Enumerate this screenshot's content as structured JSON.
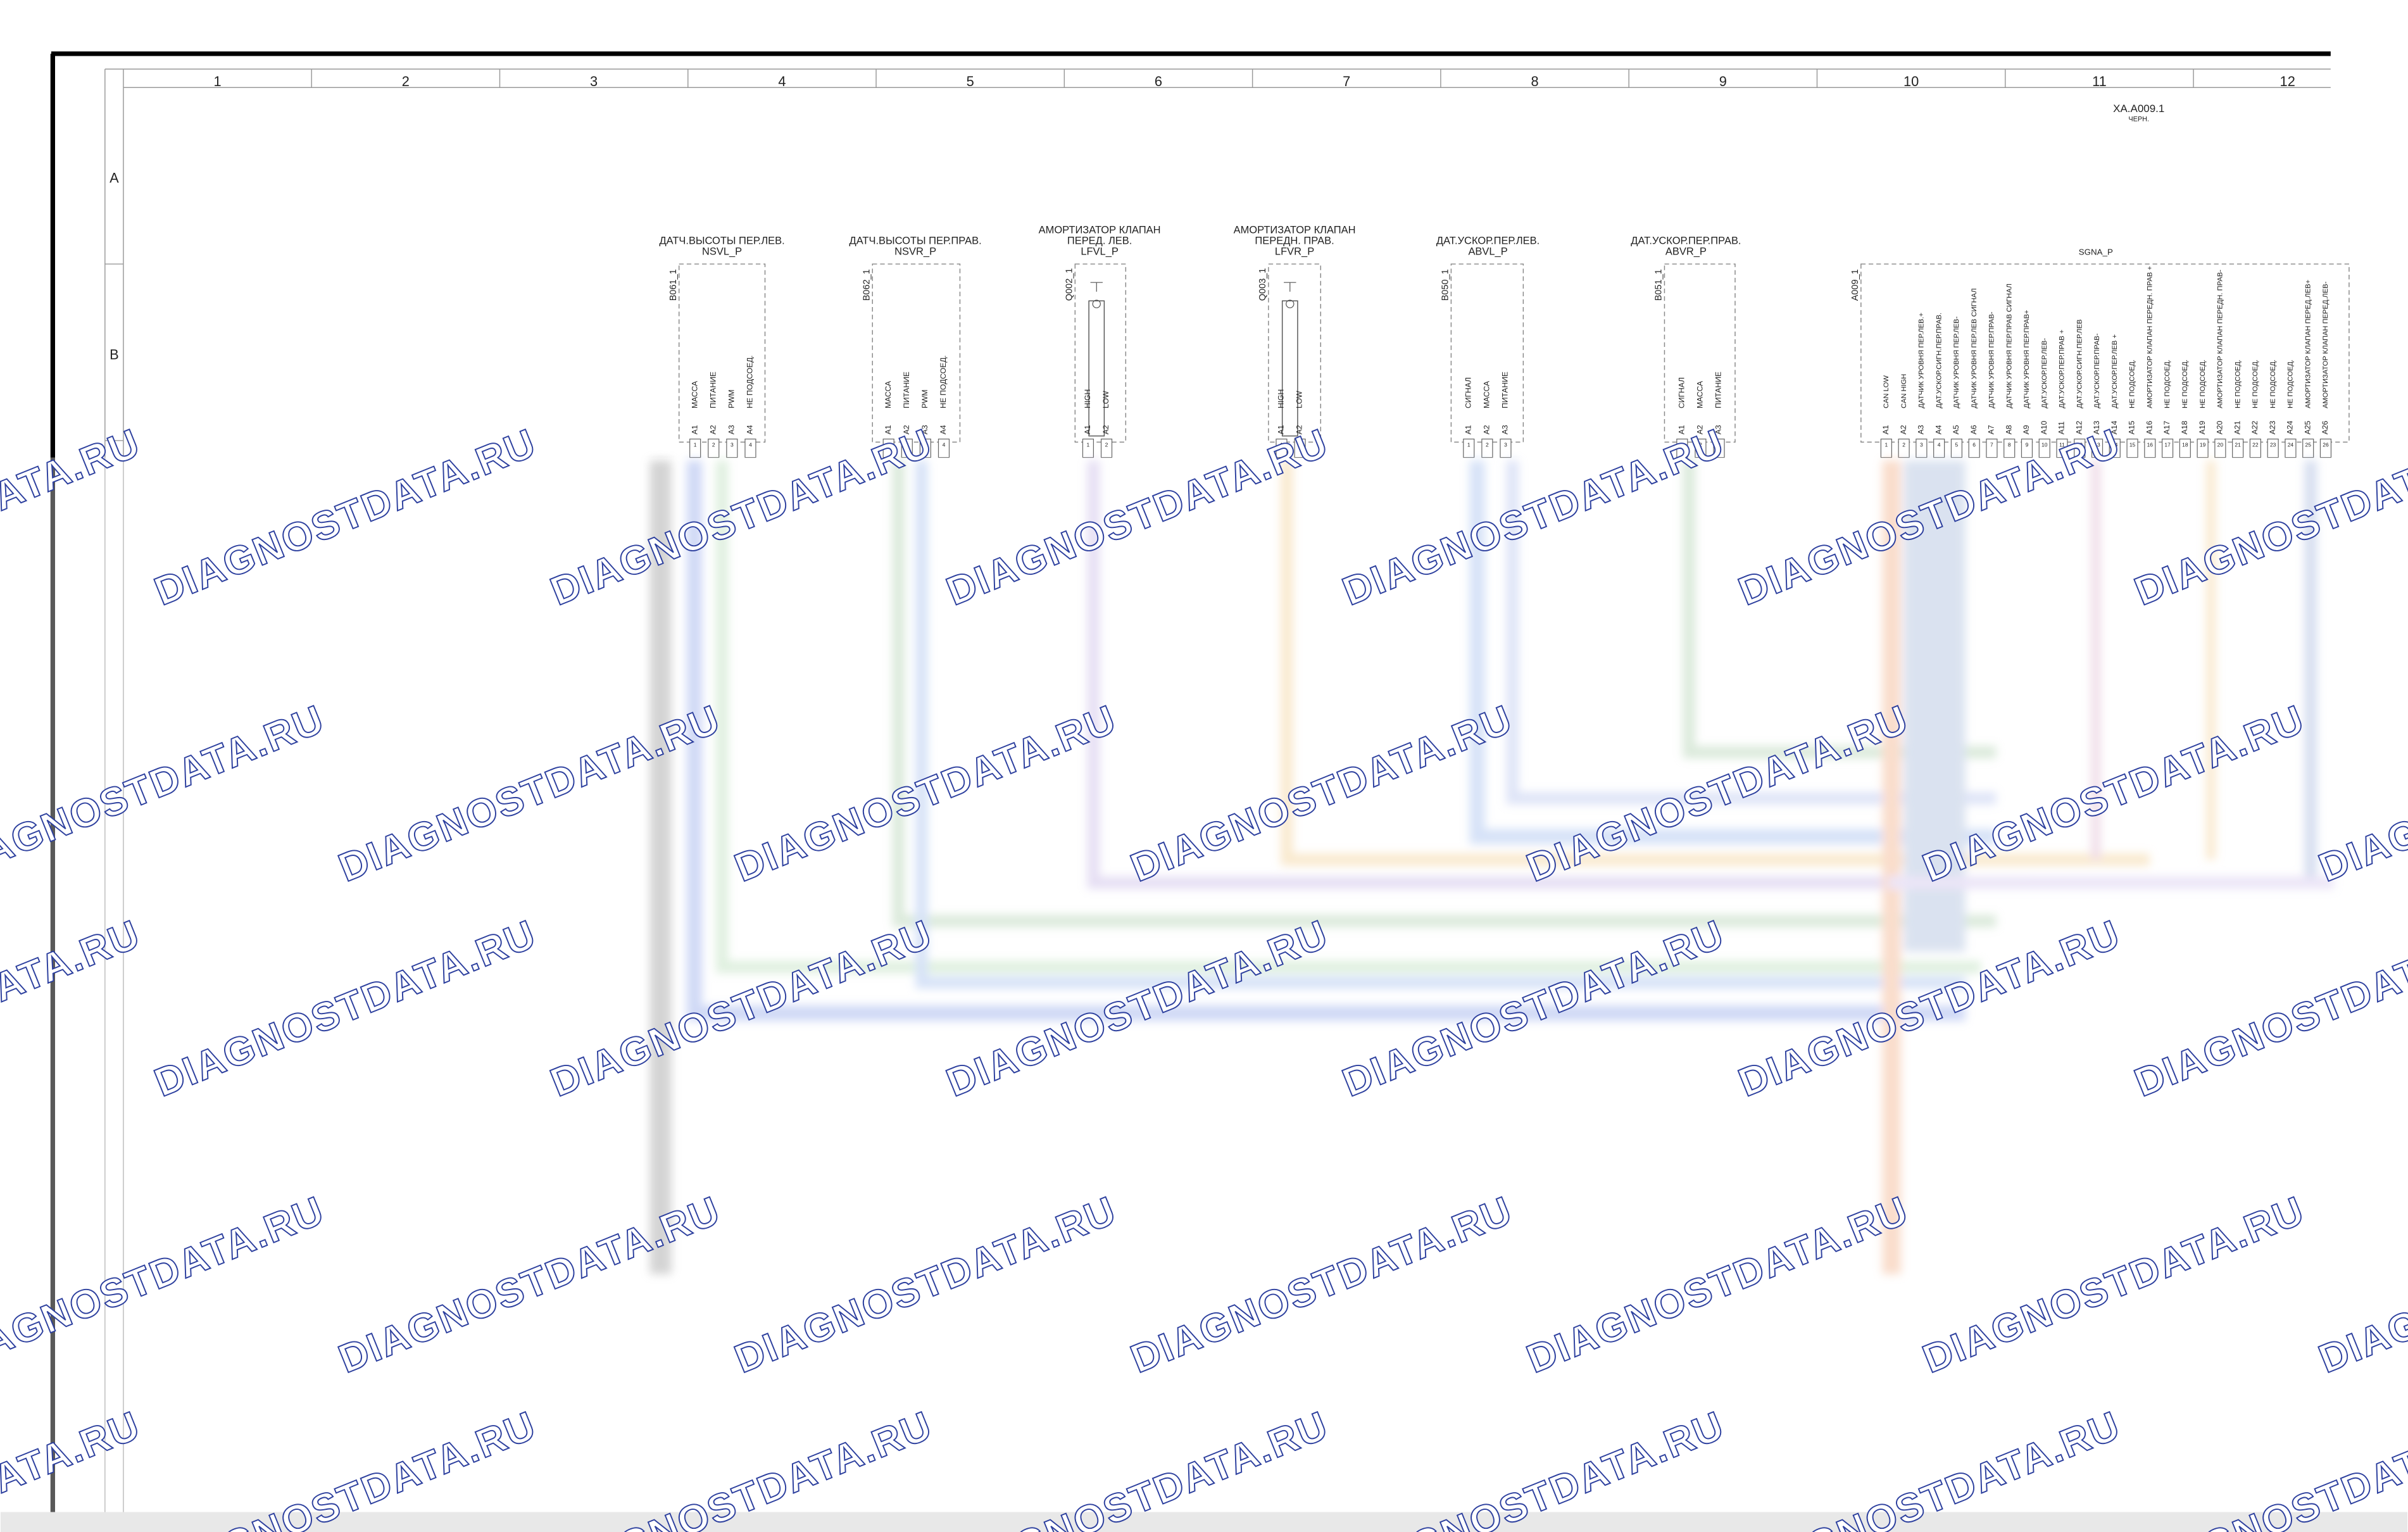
{
  "header": {
    "connector": "XA.A009.1",
    "color": "ЧЕРН."
  },
  "grid": {
    "columns": [
      "1",
      "2",
      "3",
      "4",
      "5",
      "6",
      "7",
      "8",
      "9",
      "10",
      "11",
      "12"
    ],
    "rows": [
      "A",
      "B"
    ]
  },
  "components": [
    {
      "title": [
        "ДАТЧ.ВЫСОТЫ ПЕР.ЛЕВ.",
        "NSVL_P"
      ],
      "ref": "B061_1",
      "pins": [
        {
          "id": "A1",
          "number": "1",
          "label": "МАССА"
        },
        {
          "id": "A2",
          "number": "2",
          "label": "ПИТАНИЕ"
        },
        {
          "id": "A3",
          "number": "3",
          "label": "PWM"
        },
        {
          "id": "A4",
          "number": "4",
          "label": "НЕ ПОДСОЕД."
        }
      ]
    },
    {
      "title": [
        "ДАТЧ.ВЫСОТЫ ПЕР.ПРАВ.",
        "NSVR_P"
      ],
      "ref": "B062_1",
      "pins": [
        {
          "id": "A1",
          "number": "1",
          "label": "МАССА"
        },
        {
          "id": "A2",
          "number": "2",
          "label": "ПИТАНИЕ"
        },
        {
          "id": "A3",
          "number": "3",
          "label": "PWM"
        },
        {
          "id": "A4",
          "number": "4",
          "label": "НЕ ПОДСОЕД."
        }
      ]
    },
    {
      "title": [
        "АМОРТИЗАТОР КЛАПАН",
        "ПЕРЕД. ЛЕВ.",
        "LFVL_P"
      ],
      "ref": "Q002_1",
      "pins": [
        {
          "id": "A1",
          "number": "1",
          "label": "HIGH"
        },
        {
          "id": "A2",
          "number": "2",
          "label": "LOW"
        }
      ]
    },
    {
      "title": [
        "АМОРТИЗАТОР КЛАПАН",
        "ПЕРЕДН. ПРАВ.",
        "LFVR_P"
      ],
      "ref": "Q003_1",
      "pins": [
        {
          "id": "A1",
          "number": "1",
          "label": "HIGH"
        },
        {
          "id": "A2",
          "number": "2",
          "label": "LOW"
        }
      ]
    },
    {
      "title": [
        "ДАТ.УСКОР.ПЕР.ЛЕВ.",
        "ABVL_P"
      ],
      "ref": "B050_1",
      "pins": [
        {
          "id": "A1",
          "number": "1",
          "label": "СИГНАЛ"
        },
        {
          "id": "A2",
          "number": "2",
          "label": "МАССА"
        },
        {
          "id": "A3",
          "number": "3",
          "label": "ПИТАНИЕ"
        }
      ]
    },
    {
      "title": [
        "ДАТ.УСКОР.ПЕР.ПРАВ.",
        "ABVR_P"
      ],
      "ref": "B051_1",
      "pins": [
        {
          "id": "A1",
          "number": "1",
          "label": "СИГНАЛ"
        },
        {
          "id": "A2",
          "number": "2",
          "label": "МАССА"
        },
        {
          "id": "A3",
          "number": "3",
          "label": "ПИТАНИЕ"
        }
      ]
    },
    {
      "title": [
        "SGNA_P"
      ],
      "ref": "A009_1",
      "pins": [
        {
          "id": "A1",
          "number": "1",
          "label": "CAN LOW"
        },
        {
          "id": "A2",
          "number": "2",
          "label": "CAN HIGH"
        },
        {
          "id": "A3",
          "number": "3",
          "label": "ДАТЧИК УРОВНЯ ПЕР.ЛЕВ.+"
        },
        {
          "id": "A4",
          "number": "4",
          "label": "ДАТ.УСКОР.СИГН.ПЕР.ПРАВ."
        },
        {
          "id": "A5",
          "number": "5",
          "label": "ДАТЧИК УРОВНЯ ПЕР.ЛЕВ-"
        },
        {
          "id": "A6",
          "number": "6",
          "label": "ДАТЧИК УРОВНЯ ПЕР.ЛЕВ СИГНАЛ"
        },
        {
          "id": "A7",
          "number": "7",
          "label": "ДАТЧИК УРОВНЯ ПЕР.ПРАВ-"
        },
        {
          "id": "A8",
          "number": "8",
          "label": "ДАТЧИК УРОВНЯ ПЕР.ПРАВ СИГНАЛ"
        },
        {
          "id": "A9",
          "number": "9",
          "label": "ДАТЧИК УРОВНЯ ПЕР.ПРАВ+"
        },
        {
          "id": "A10",
          "number": "10",
          "label": "ДАТ.УСКОР.ПЕР.ЛЕВ-"
        },
        {
          "id": "A11",
          "number": "11",
          "label": "ДАТ.УСКОР.ПЕР.ПРАВ +"
        },
        {
          "id": "A12",
          "number": "12",
          "label": "ДАТ.УСКОР.СИГН.ПЕР.ЛЕВ"
        },
        {
          "id": "A13",
          "number": "13",
          "label": "ДАТ.УСКОР.ПЕР.ПРАВ-"
        },
        {
          "id": "A14",
          "number": "14",
          "label": "ДАТ.УСКОР.ПЕР.ЛЕВ +"
        },
        {
          "id": "A15",
          "number": "15",
          "label": "НЕ ПОДСОЕД."
        },
        {
          "id": "A16",
          "number": "16",
          "label": "АМОРТИЗАТОР КЛАПАН ПЕРЕДН. ПРАВ +"
        },
        {
          "id": "A17",
          "number": "17",
          "label": "НЕ ПОДСОЕД."
        },
        {
          "id": "A18",
          "number": "18",
          "label": "НЕ ПОДСОЕД."
        },
        {
          "id": "A19",
          "number": "19",
          "label": "НЕ ПОДСОЕД."
        },
        {
          "id": "A20",
          "number": "20",
          "label": "АМОРТИЗАТОР КЛАПАН ПЕРЕДН. ПРАВ-"
        },
        {
          "id": "A21",
          "number": "21",
          "label": "НЕ ПОДСОЕД."
        },
        {
          "id": "A22",
          "number": "22",
          "label": "НЕ ПОДСОЕД."
        },
        {
          "id": "A23",
          "number": "23",
          "label": "НЕ ПОДСОЕД."
        },
        {
          "id": "A24",
          "number": "24",
          "label": "НЕ ПОДСОЕД."
        },
        {
          "id": "A25",
          "number": "25",
          "label": "АМОРТИЗАТОР КЛАПАН ПЕРЕД.ЛЕВ+"
        },
        {
          "id": "A26",
          "number": "26",
          "label": "АМОРТИЗАТОР КЛАПАН ПЕРЕД.ЛЕВ-"
        }
      ]
    }
  ],
  "watermark": "DIAGNOSTDATA.RU"
}
